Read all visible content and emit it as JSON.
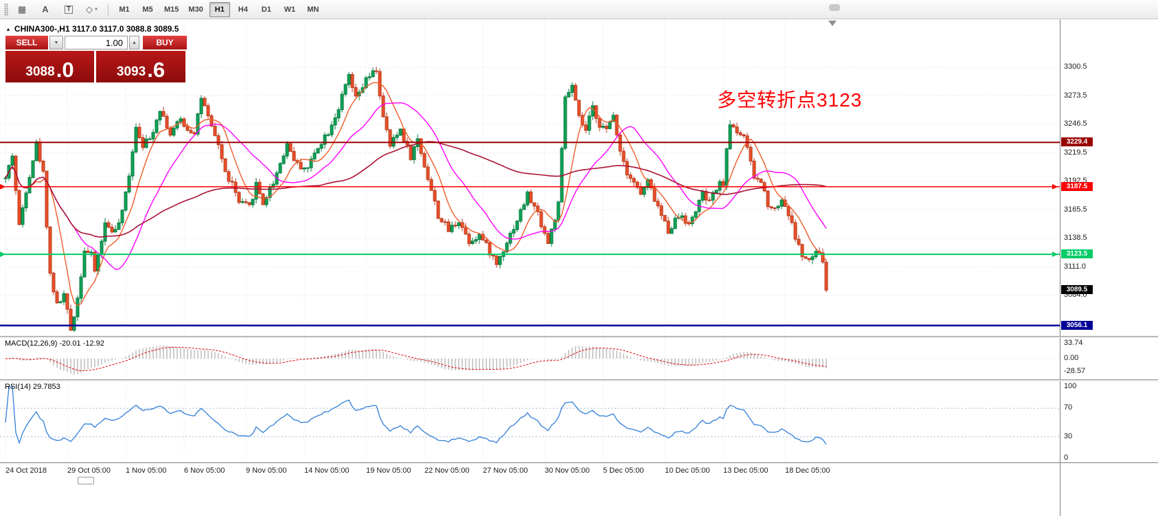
{
  "toolbar": {
    "tools": [
      {
        "name": "stamp-grid",
        "glyph": "▦"
      },
      {
        "name": "text-label",
        "glyph": "A"
      },
      {
        "name": "text-box",
        "glyph": "T"
      },
      {
        "name": "shapes",
        "glyph": "◇",
        "dropdown_glyph": "▼"
      }
    ],
    "timeframes": [
      "M1",
      "M5",
      "M15",
      "M30",
      "H1",
      "H4",
      "D1",
      "W1",
      "MN"
    ],
    "active_timeframe": "H1"
  },
  "chart": {
    "header": "CHINA300-,H1  3117.0 3117.0 3088.8 3089.5",
    "collapse_glyph": "▲",
    "annotation": {
      "text": "多空转折点3123",
      "color": "#ff0000"
    },
    "price_scale": [
      "3300.5",
      "3273.5",
      "3246.5",
      "3219.5",
      "3192.5",
      "3165.5",
      "3138.5",
      "3111.0",
      "3084.0"
    ],
    "levels": [
      {
        "price": 3229.4,
        "label": "3229.4",
        "color": "#990000",
        "width": 2,
        "arrows": false
      },
      {
        "price": 3187.5,
        "label": "3187.5",
        "color": "#ff0000",
        "width": 1.5,
        "arrows": true
      },
      {
        "price": 3123.5,
        "label": "3123.5",
        "color": "#00cc66",
        "width": 2,
        "arrows": true
      },
      {
        "price": 3056.1,
        "label": "3056.1",
        "color": "#000099",
        "width": 2.5,
        "arrows": false
      }
    ],
    "current": {
      "price": 3089.5,
      "label": "3089.5",
      "bg": "#000000"
    }
  },
  "trade_panel": {
    "sell_label": "SELL",
    "buy_label": "BUY",
    "volume": "1.00",
    "sell_price": "3088",
    "sell_price_fraction": ".0",
    "buy_price": "3093",
    "buy_price_fraction": ".6"
  },
  "macd": {
    "label": "MACD(12,26,9) -20.01 -12.92",
    "scale": [
      "33.74",
      "0.00",
      "-28.57"
    ]
  },
  "rsi": {
    "label": "RSI(14) 29.7853",
    "scale": [
      "100",
      "70",
      "30",
      "0"
    ],
    "levels": [
      70,
      30
    ]
  },
  "time_axis": {
    "labels": [
      {
        "text": "24 Oct 2018",
        "bar": 0
      },
      {
        "text": "29 Oct 05:00",
        "bar": 18
      },
      {
        "text": "1 Nov 05:00",
        "bar": 35
      },
      {
        "text": "6 Nov 05:00",
        "bar": 52
      },
      {
        "text": "9 Nov 05:00",
        "bar": 70
      },
      {
        "text": "14 Nov 05:00",
        "bar": 87
      },
      {
        "text": "19 Nov 05:00",
        "bar": 105
      },
      {
        "text": "22 Nov 05:00",
        "bar": 122
      },
      {
        "text": "27 Nov 05:00",
        "bar": 139
      },
      {
        "text": "30 Nov 05:00",
        "bar": 157
      },
      {
        "text": "5 Dec 05:00",
        "bar": 174
      },
      {
        "text": "10 Dec 05:00",
        "bar": 192
      },
      {
        "text": "13 Dec 05:00",
        "bar": 209
      },
      {
        "text": "18 Dec 05:00",
        "bar": 227
      }
    ]
  },
  "chart_data": {
    "type": "candlestick",
    "symbol": "CHINA300-",
    "timeframe": "H1",
    "ohlc": {
      "open": 3117.0,
      "high": 3117.0,
      "low": 3088.8,
      "close": 3089.5
    },
    "bars": 240,
    "last_close": 3089.5,
    "seed": 42,
    "noise": 7,
    "wick": 4.5,
    "clamp_high": 3301,
    "clamp_low": 3046,
    "y_axis": {
      "top_label": 3300.5,
      "step": 27
    },
    "colors": {
      "up": {
        "fill": "#0fa357",
        "stroke": "#077a3f"
      },
      "down": {
        "fill": "#e8502a",
        "stroke": "#bb3a1c"
      }
    },
    "moving_averages": [
      {
        "period": 8,
        "color": "#ef5b28",
        "width": 1.4
      },
      {
        "period": 21,
        "color": "#ff00ff",
        "width": 1.4
      },
      {
        "period": 89,
        "color": "#aa1133",
        "width": 1.6
      }
    ],
    "macd_params": [
      12,
      26,
      9
    ],
    "rsi_period": 14,
    "close_waypoints": [
      [
        0,
        3195
      ],
      [
        2,
        3218
      ],
      [
        4,
        3150
      ],
      [
        6,
        3185
      ],
      [
        9,
        3228
      ],
      [
        11,
        3200
      ],
      [
        13,
        3105
      ],
      [
        15,
        3075
      ],
      [
        17,
        3085
      ],
      [
        19,
        3052
      ],
      [
        21,
        3082
      ],
      [
        23,
        3128
      ],
      [
        25,
        3122
      ],
      [
        26,
        3108
      ],
      [
        29,
        3152
      ],
      [
        32,
        3145
      ],
      [
        34,
        3162
      ],
      [
        36,
        3200
      ],
      [
        38,
        3245
      ],
      [
        40,
        3228
      ],
      [
        42,
        3232
      ],
      [
        45,
        3262
      ],
      [
        48,
        3237
      ],
      [
        51,
        3251
      ],
      [
        53,
        3242
      ],
      [
        55,
        3240
      ],
      [
        57,
        3272
      ],
      [
        60,
        3242
      ],
      [
        62,
        3228
      ],
      [
        64,
        3200
      ],
      [
        66,
        3190
      ],
      [
        68,
        3172
      ],
      [
        71,
        3168
      ],
      [
        73,
        3190
      ],
      [
        75,
        3172
      ],
      [
        78,
        3192
      ],
      [
        80,
        3210
      ],
      [
        82,
        3228
      ],
      [
        85,
        3208
      ],
      [
        88,
        3205
      ],
      [
        91,
        3226
      ],
      [
        94,
        3240
      ],
      [
        97,
        3262
      ],
      [
        100,
        3292
      ],
      [
        102,
        3270
      ],
      [
        105,
        3288
      ],
      [
        108,
        3298
      ],
      [
        110,
        3252
      ],
      [
        112,
        3226
      ],
      [
        115,
        3242
      ],
      [
        118,
        3216
      ],
      [
        120,
        3232
      ],
      [
        123,
        3196
      ],
      [
        126,
        3160
      ],
      [
        129,
        3146
      ],
      [
        132,
        3156
      ],
      [
        135,
        3136
      ],
      [
        138,
        3142
      ],
      [
        141,
        3126
      ],
      [
        143,
        3114
      ],
      [
        146,
        3136
      ],
      [
        149,
        3156
      ],
      [
        152,
        3180
      ],
      [
        155,
        3162
      ],
      [
        158,
        3134
      ],
      [
        161,
        3170
      ],
      [
        163,
        3272
      ],
      [
        165,
        3282
      ],
      [
        167,
        3252
      ],
      [
        169,
        3240
      ],
      [
        171,
        3262
      ],
      [
        173,
        3247
      ],
      [
        175,
        3240
      ],
      [
        177,
        3256
      ],
      [
        179,
        3222
      ],
      [
        181,
        3202
      ],
      [
        183,
        3192
      ],
      [
        185,
        3180
      ],
      [
        187,
        3192
      ],
      [
        189,
        3176
      ],
      [
        191,
        3160
      ],
      [
        193,
        3146
      ],
      [
        195,
        3156
      ],
      [
        197,
        3162
      ],
      [
        199,
        3150
      ],
      [
        201,
        3166
      ],
      [
        203,
        3180
      ],
      [
        205,
        3172
      ],
      [
        207,
        3186
      ],
      [
        209,
        3192
      ],
      [
        211,
        3248
      ],
      [
        213,
        3240
      ],
      [
        215,
        3236
      ],
      [
        216,
        3222
      ],
      [
        218,
        3196
      ],
      [
        220,
        3192
      ],
      [
        222,
        3172
      ],
      [
        224,
        3166
      ],
      [
        226,
        3176
      ],
      [
        228,
        3162
      ],
      [
        230,
        3140
      ],
      [
        232,
        3122
      ],
      [
        234,
        3116
      ],
      [
        236,
        3126
      ],
      [
        238,
        3118
      ],
      [
        239,
        3089.5
      ]
    ]
  }
}
